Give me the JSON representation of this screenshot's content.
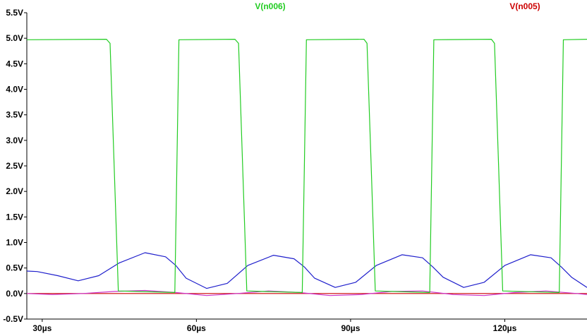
{
  "chart_data": {
    "type": "line",
    "title": "",
    "xlabel": "",
    "ylabel": "",
    "xlim": [
      27,
      136
    ],
    "ylim": [
      -0.5,
      5.5
    ],
    "grid": false,
    "legend_placement": "top",
    "legend": [
      {
        "name": "V(n006)",
        "color": "#22cc22"
      },
      {
        "name": "V(n005)",
        "color": "#cc0000"
      }
    ],
    "x_ticks": [
      30,
      60,
      90,
      120
    ],
    "x_tick_labels": [
      "30µs",
      "60µs",
      "90µs",
      "120µs"
    ],
    "y_ticks": [
      -0.5,
      0.0,
      0.5,
      1.0,
      1.5,
      2.0,
      2.5,
      3.0,
      3.5,
      4.0,
      4.5,
      5.0,
      5.5
    ],
    "y_tick_labels": [
      "-0.5V",
      "0.0V",
      "0.5V",
      "1.0V",
      "1.5V",
      "2.0V",
      "2.5V",
      "3.0V",
      "3.5V",
      "4.0V",
      "4.5V",
      "5.0V",
      "5.5V"
    ],
    "series": [
      {
        "name": "V(n006)",
        "color": "#22cc22",
        "x": [
          27,
          42.5,
          43.2,
          44.0,
          44.8,
          55.8,
          56.2,
          56.6,
          67.5,
          68.2,
          69.0,
          69.8,
          80.6,
          81.0,
          81.4,
          92.6,
          93.2,
          94.0,
          94.8,
          105.4,
          105.8,
          106.2,
          117.4,
          118.0,
          118.8,
          119.6,
          130.6,
          131.0,
          131.4,
          136
        ],
        "values": [
          4.97,
          4.98,
          4.9,
          2.5,
          0.05,
          0.02,
          2.5,
          4.97,
          4.98,
          4.9,
          2.5,
          0.05,
          0.02,
          2.5,
          4.97,
          4.98,
          4.9,
          2.5,
          0.05,
          0.02,
          2.5,
          4.97,
          4.98,
          4.9,
          2.5,
          0.05,
          0.02,
          2.5,
          4.97,
          4.98
        ]
      },
      {
        "color": "#1f1fcc",
        "x": [
          27,
          29,
          33,
          37,
          41,
          45,
          50,
          54,
          56,
          58,
          62,
          66,
          70,
          75,
          79,
          81,
          83,
          87,
          91,
          95,
          100,
          104,
          106,
          108,
          112,
          116,
          120,
          125,
          129,
          131,
          133,
          136
        ],
        "values": [
          0.44,
          0.43,
          0.35,
          0.25,
          0.35,
          0.6,
          0.8,
          0.72,
          0.55,
          0.3,
          0.1,
          0.2,
          0.55,
          0.75,
          0.68,
          0.52,
          0.3,
          0.12,
          0.22,
          0.55,
          0.76,
          0.7,
          0.52,
          0.32,
          0.12,
          0.22,
          0.55,
          0.76,
          0.7,
          0.52,
          0.32,
          0.12
        ]
      },
      {
        "name": "V(n005)",
        "color": "#cc0000",
        "x": [
          27,
          136
        ],
        "values": [
          0.0,
          0.0
        ]
      },
      {
        "color": "#cc33cc",
        "x": [
          27,
          32,
          38,
          44,
          50,
          56,
          62,
          68,
          74,
          80,
          86,
          92,
          98,
          104,
          110,
          116,
          122,
          128,
          134,
          136
        ],
        "values": [
          0.0,
          -0.02,
          0.0,
          0.04,
          0.06,
          0.02,
          -0.04,
          0.0,
          0.05,
          0.02,
          -0.04,
          -0.02,
          0.04,
          0.05,
          -0.02,
          -0.04,
          0.02,
          0.05,
          0.0,
          -0.02
        ]
      }
    ]
  }
}
